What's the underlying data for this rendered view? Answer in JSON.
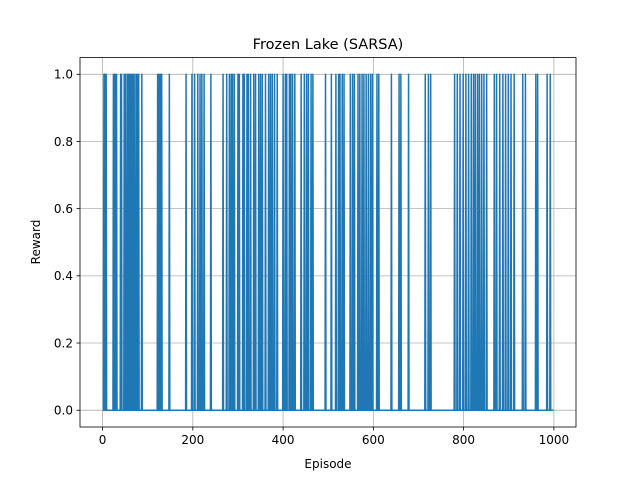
{
  "chart_data": {
    "type": "line",
    "title": "Frozen Lake (SARSA)",
    "xlabel": "Episode",
    "ylabel": "Reward",
    "xlim": [
      -50,
      1049
    ],
    "ylim": [
      -0.05,
      1.05
    ],
    "grid": true,
    "x_ticks": [
      0,
      200,
      400,
      600,
      800,
      1000
    ],
    "x_tick_labels": [
      "0",
      "200",
      "400",
      "600",
      "800",
      "1000"
    ],
    "y_ticks": [
      0.0,
      0.2,
      0.4,
      0.6,
      0.8,
      1.0
    ],
    "y_tick_labels": [
      "0.0",
      "0.2",
      "0.4",
      "0.6",
      "0.8",
      "1.0"
    ],
    "line_color": "#1f77b4",
    "series": [
      {
        "episodes": 1000,
        "success_episodes": [
          3,
          5,
          6,
          8,
          24,
          27,
          30,
          31,
          40,
          42,
          48,
          51,
          55,
          57,
          60,
          63,
          66,
          68,
          70,
          74,
          77,
          80,
          87,
          122,
          125,
          128,
          131,
          148,
          185,
          198,
          204,
          211,
          216,
          220,
          225,
          240,
          267,
          275,
          281,
          285,
          288,
          292,
          300,
          303,
          311,
          314,
          320,
          323,
          328,
          335,
          339,
          346,
          350,
          354,
          361,
          368,
          372,
          376,
          381,
          387,
          400,
          405,
          408,
          414,
          417,
          421,
          426,
          440,
          447,
          452,
          456,
          462,
          466,
          494,
          507,
          517,
          523,
          526,
          531,
          535,
          549,
          554,
          558,
          566,
          570,
          575,
          579,
          584,
          589,
          594,
          598,
          608,
          612,
          640,
          657,
          661,
          678,
          715,
          722,
          727,
          780,
          786,
          792,
          799,
          805,
          811,
          817,
          822,
          826,
          831,
          835,
          840,
          845,
          851,
          868,
          873,
          880,
          887,
          893,
          899,
          905,
          912,
          931,
          937,
          960,
          964,
          985,
          992
        ]
      }
    ]
  }
}
